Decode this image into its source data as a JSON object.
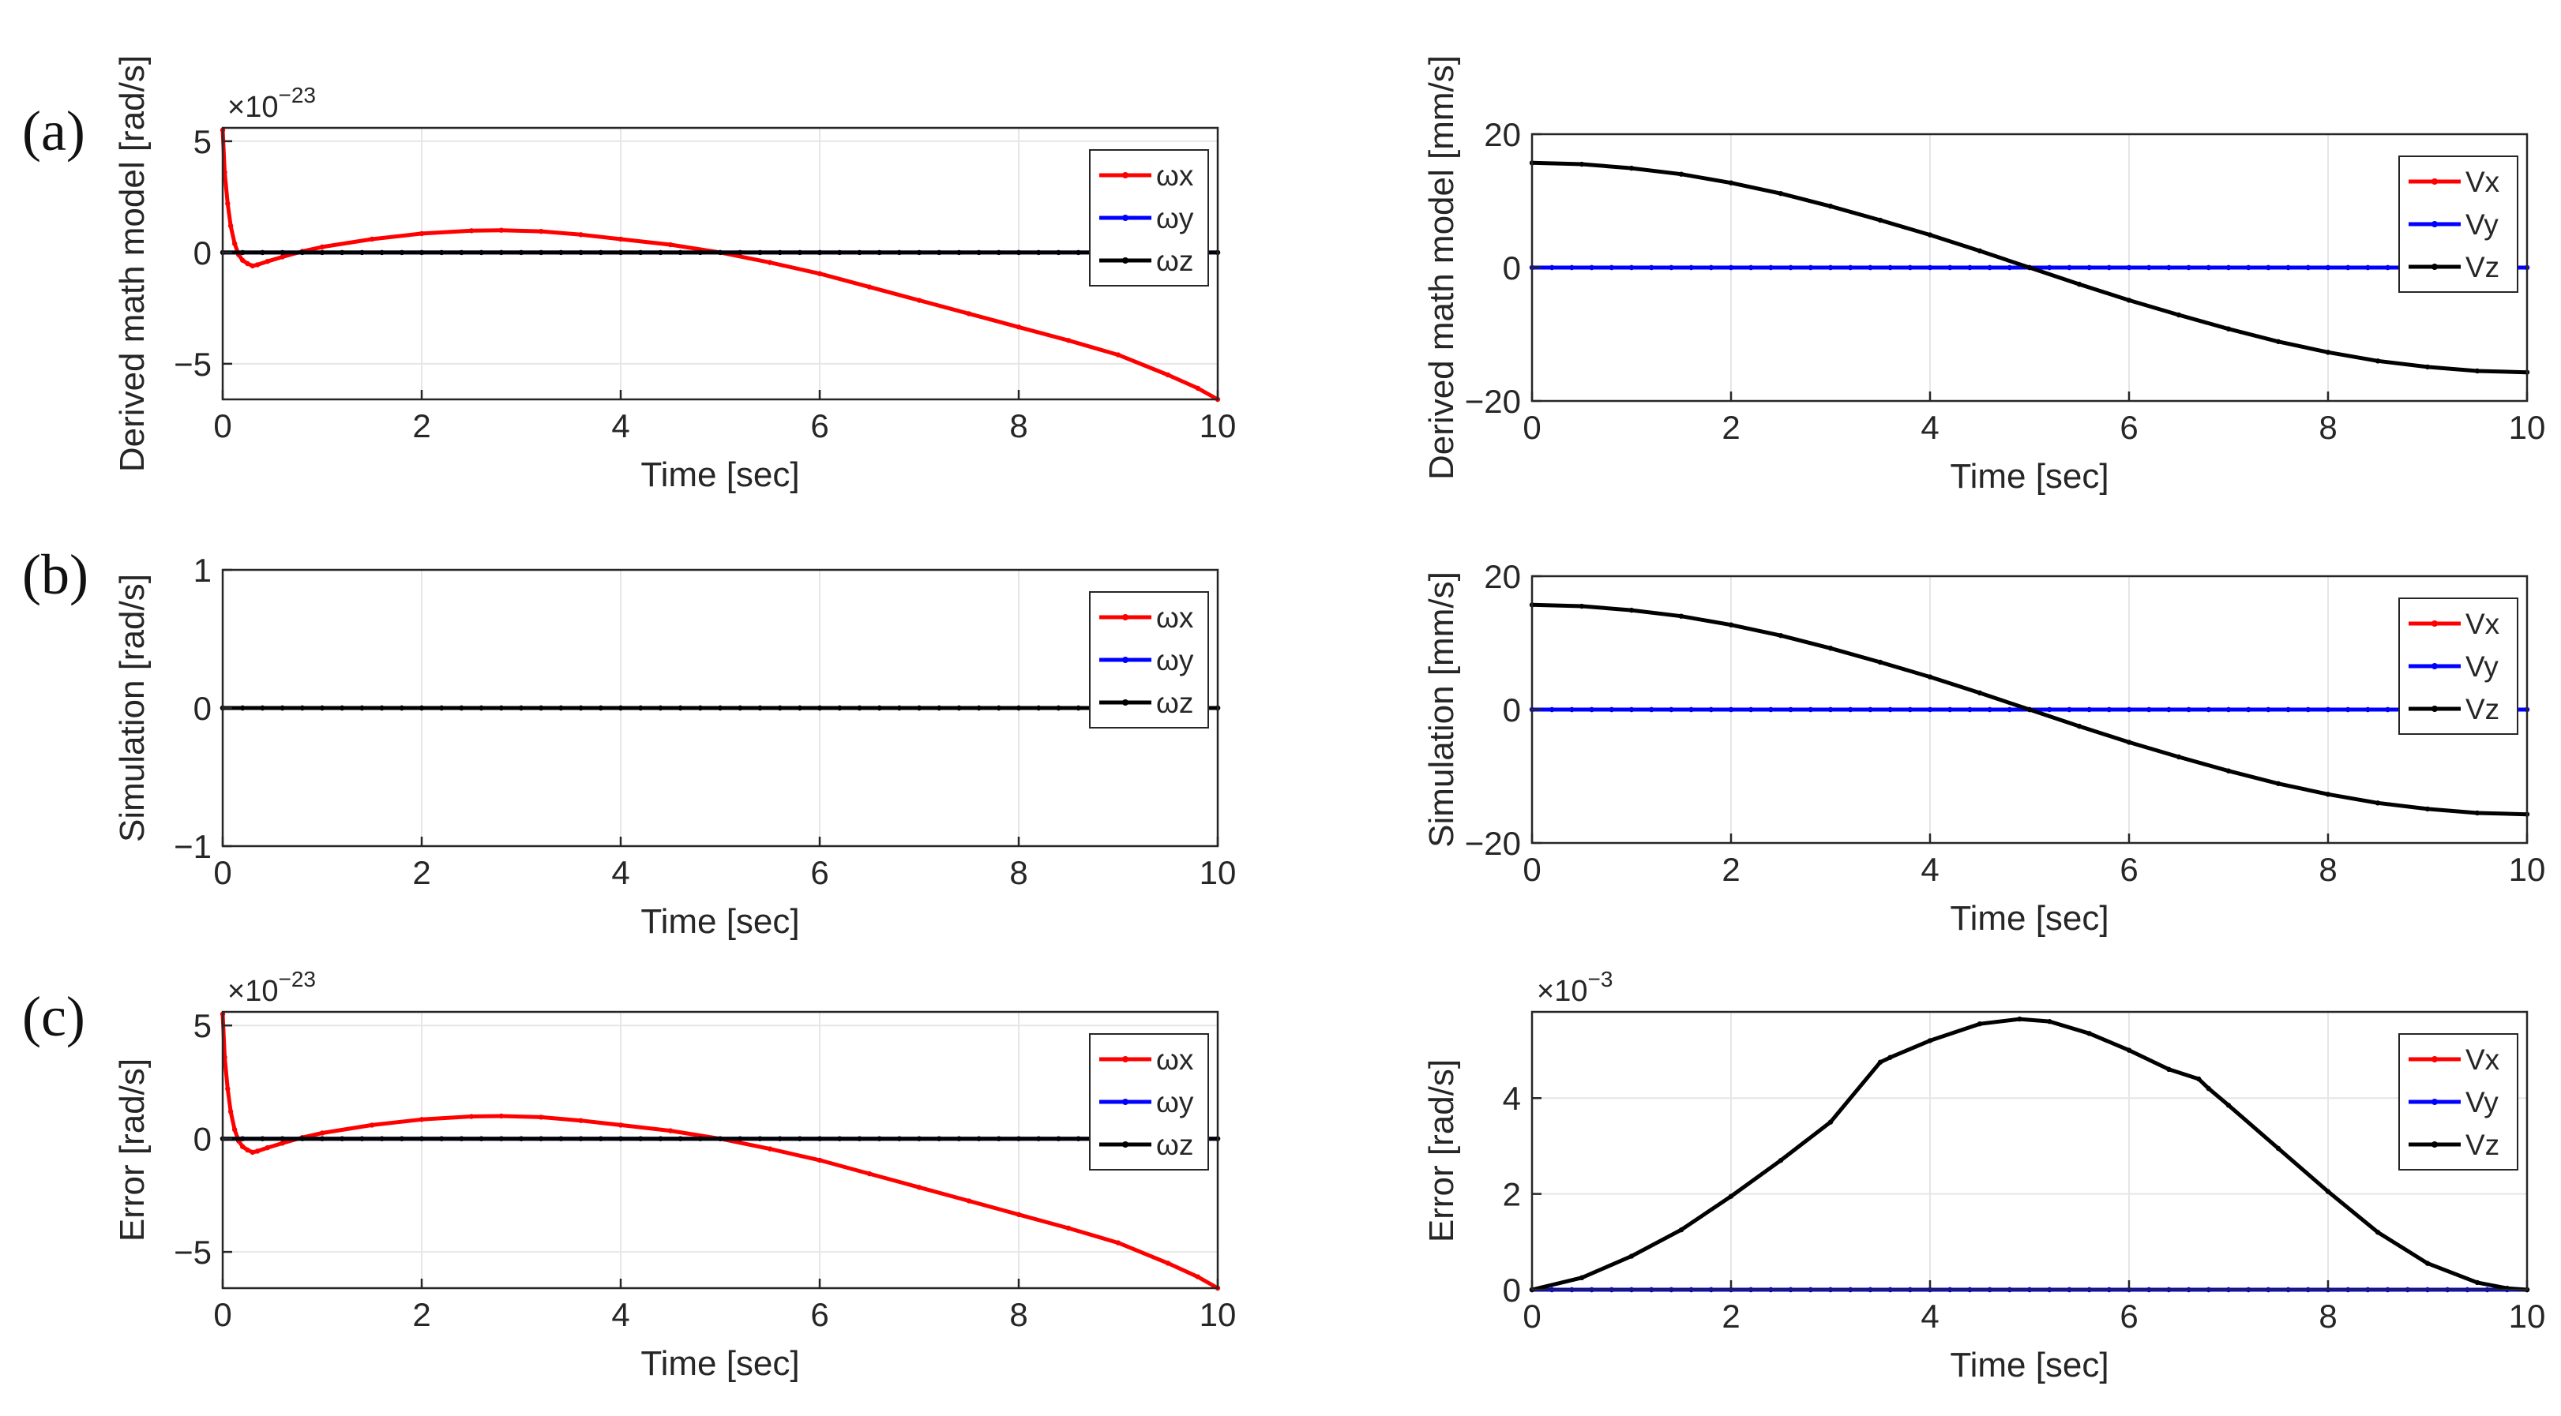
{
  "panel_labels": [
    "(a)",
    "(b)",
    "(c)"
  ],
  "colors": {
    "x": "#ff0000",
    "y": "#0000ff",
    "z": "#000000",
    "grid": "#e6e6e6",
    "axis": "#262626"
  },
  "chart_data": [
    {
      "id": "a-left",
      "type": "line",
      "panel": "(a)",
      "xlabel": "Time [sec]",
      "ylabel": "Derived math model [rad/s]",
      "xlim": [
        0,
        10
      ],
      "ylim": [
        -6.6,
        5.6
      ],
      "xticks": [
        0,
        2,
        4,
        6,
        8,
        10
      ],
      "yticks": [
        -5,
        0,
        5
      ],
      "multiplier": {
        "base": "×10",
        "exp": "-23"
      },
      "series": [
        {
          "name": "ωx",
          "color": "x",
          "x": [
            0,
            0.02,
            0.05,
            0.08,
            0.12,
            0.16,
            0.2,
            0.25,
            0.3,
            0.35,
            0.45,
            0.6,
            0.8,
            1,
            1.5,
            2,
            2.5,
            2.8,
            3.2,
            3.6,
            4,
            4.5,
            5,
            5.5,
            6,
            6.5,
            7,
            7.5,
            8,
            8.5,
            9,
            9.5,
            9.8,
            10
          ],
          "y": [
            5.5,
            3.6,
            2.2,
            1.2,
            0.4,
            -0.1,
            -0.35,
            -0.5,
            -0.6,
            -0.55,
            -0.4,
            -0.2,
            0.05,
            0.25,
            0.6,
            0.85,
            0.98,
            1.0,
            0.95,
            0.8,
            0.6,
            0.35,
            0.0,
            -0.45,
            -0.95,
            -1.55,
            -2.15,
            -2.75,
            -3.35,
            -3.95,
            -4.6,
            -5.5,
            -6.1,
            -6.6
          ]
        },
        {
          "name": "ωy",
          "color": "y",
          "x": [
            0,
            10
          ],
          "y": [
            0,
            0
          ]
        },
        {
          "name": "ωz",
          "color": "z",
          "x": [
            0,
            10
          ],
          "y": [
            0,
            0
          ]
        }
      ],
      "legend": [
        "ωx",
        "ωy",
        "ωz"
      ]
    },
    {
      "id": "a-right",
      "type": "line",
      "panel": "(a)",
      "xlabel": "Time [sec]",
      "ylabel": "Derived math model [mm/s]",
      "xlim": [
        0,
        10
      ],
      "ylim": [
        -20,
        20
      ],
      "xticks": [
        0,
        2,
        4,
        6,
        8,
        10
      ],
      "yticks": [
        -20,
        0,
        20
      ],
      "series": [
        {
          "name": "Vx",
          "color": "x",
          "x": [
            0,
            10
          ],
          "y": [
            0,
            0
          ]
        },
        {
          "name": "Vy",
          "color": "y",
          "x": [
            0,
            10
          ],
          "y": [
            0,
            0
          ]
        },
        {
          "name": "Vz",
          "color": "z",
          "x": [
            0,
            0.5,
            1,
            1.5,
            2,
            2.5,
            3,
            3.5,
            4,
            4.5,
            5,
            5.5,
            6,
            6.5,
            7,
            7.5,
            8,
            8.5,
            9,
            9.5,
            10
          ],
          "y": [
            15.7,
            15.5,
            14.9,
            14.0,
            12.7,
            11.1,
            9.2,
            7.1,
            4.9,
            2.5,
            0.0,
            -2.5,
            -4.9,
            -7.1,
            -9.2,
            -11.1,
            -12.7,
            -14.0,
            -14.9,
            -15.5,
            -15.7
          ]
        }
      ],
      "legend": [
        "Vx",
        "Vy",
        "Vz"
      ]
    },
    {
      "id": "b-left",
      "type": "line",
      "panel": "(b)",
      "xlabel": "Time [sec]",
      "ylabel": "Simulation [rad/s]",
      "xlim": [
        0,
        10
      ],
      "ylim": [
        -1,
        1
      ],
      "xticks": [
        0,
        2,
        4,
        6,
        8,
        10
      ],
      "yticks": [
        -1,
        0,
        1
      ],
      "series": [
        {
          "name": "ωx",
          "color": "x",
          "x": [
            0,
            10
          ],
          "y": [
            0,
            0
          ]
        },
        {
          "name": "ωy",
          "color": "y",
          "x": [
            0,
            10
          ],
          "y": [
            0,
            0
          ]
        },
        {
          "name": "ωz",
          "color": "z",
          "x": [
            0,
            10
          ],
          "y": [
            0,
            0
          ]
        }
      ],
      "legend": [
        "ωx",
        "ωy",
        "ωz"
      ]
    },
    {
      "id": "b-right",
      "type": "line",
      "panel": "(b)",
      "xlabel": "Time [sec]",
      "ylabel": "Simulation [mm/s]",
      "xlim": [
        0,
        10
      ],
      "ylim": [
        -20,
        20
      ],
      "xticks": [
        0,
        2,
        4,
        6,
        8,
        10
      ],
      "yticks": [
        -20,
        0,
        20
      ],
      "series": [
        {
          "name": "Vx",
          "color": "x",
          "x": [
            0,
            10
          ],
          "y": [
            0,
            0
          ]
        },
        {
          "name": "Vy",
          "color": "y",
          "x": [
            0,
            10
          ],
          "y": [
            0,
            0
          ]
        },
        {
          "name": "Vz",
          "color": "z",
          "x": [
            0,
            0.5,
            1,
            1.5,
            2,
            2.5,
            3,
            3.5,
            4,
            4.5,
            5,
            5.5,
            6,
            6.5,
            7,
            7.5,
            8,
            8.5,
            9,
            9.5,
            10
          ],
          "y": [
            15.7,
            15.5,
            14.9,
            14.0,
            12.7,
            11.1,
            9.2,
            7.1,
            4.9,
            2.5,
            0.0,
            -2.5,
            -4.9,
            -7.1,
            -9.2,
            -11.1,
            -12.7,
            -14.0,
            -14.9,
            -15.5,
            -15.7
          ]
        }
      ],
      "legend": [
        "Vx",
        "Vy",
        "Vz"
      ]
    },
    {
      "id": "c-left",
      "type": "line",
      "panel": "(c)",
      "xlabel": "Time [sec]",
      "ylabel": "Error [rad/s]",
      "xlim": [
        0,
        10
      ],
      "ylim": [
        -6.6,
        5.6
      ],
      "xticks": [
        0,
        2,
        4,
        6,
        8,
        10
      ],
      "yticks": [
        -5,
        0,
        5
      ],
      "multiplier": {
        "base": "×10",
        "exp": "-23"
      },
      "series": [
        {
          "name": "ωx",
          "color": "x",
          "x": [
            0,
            0.02,
            0.05,
            0.08,
            0.12,
            0.16,
            0.2,
            0.25,
            0.3,
            0.35,
            0.45,
            0.6,
            0.8,
            1,
            1.5,
            2,
            2.5,
            2.8,
            3.2,
            3.6,
            4,
            4.5,
            5,
            5.5,
            6,
            6.5,
            7,
            7.5,
            8,
            8.5,
            9,
            9.5,
            9.8,
            10
          ],
          "y": [
            5.5,
            3.6,
            2.2,
            1.2,
            0.4,
            -0.1,
            -0.35,
            -0.5,
            -0.6,
            -0.55,
            -0.4,
            -0.2,
            0.05,
            0.25,
            0.6,
            0.85,
            0.98,
            1.0,
            0.95,
            0.8,
            0.6,
            0.35,
            0.0,
            -0.45,
            -0.95,
            -1.55,
            -2.15,
            -2.75,
            -3.35,
            -3.95,
            -4.6,
            -5.5,
            -6.1,
            -6.6
          ]
        },
        {
          "name": "ωy",
          "color": "y",
          "x": [
            0,
            10
          ],
          "y": [
            0,
            0
          ]
        },
        {
          "name": "ωz",
          "color": "z",
          "x": [
            0,
            10
          ],
          "y": [
            0,
            0
          ]
        }
      ],
      "legend": [
        "ωx",
        "ωy",
        "ωz"
      ]
    },
    {
      "id": "c-right",
      "type": "line",
      "panel": "(c)",
      "xlabel": "Time [sec]",
      "ylabel": "Error [rad/s]",
      "xlim": [
        0,
        10
      ],
      "ylim": [
        0,
        5.8
      ],
      "xticks": [
        0,
        2,
        4,
        6,
        8,
        10
      ],
      "yticks": [
        0,
        2,
        4
      ],
      "multiplier": {
        "base": "×10",
        "exp": "-3"
      },
      "series": [
        {
          "name": "Vx",
          "color": "x",
          "x": [
            0,
            10
          ],
          "y": [
            0,
            0
          ]
        },
        {
          "name": "Vy",
          "color": "y",
          "x": [
            0,
            10
          ],
          "y": [
            0,
            0
          ]
        },
        {
          "name": "Vz",
          "color": "z",
          "x": [
            0,
            0.5,
            1,
            1.5,
            2,
            2.5,
            3,
            3.5,
            3.6,
            4,
            4.5,
            4.9,
            5.2,
            5.6,
            6,
            6.4,
            6.7,
            6.8,
            7,
            7.5,
            8,
            8.5,
            9,
            9.5,
            9.8,
            10
          ],
          "y": [
            0.0,
            0.25,
            0.7,
            1.25,
            1.95,
            2.7,
            3.5,
            4.75,
            4.85,
            5.2,
            5.55,
            5.65,
            5.6,
            5.35,
            5.0,
            4.6,
            4.4,
            4.2,
            3.85,
            2.95,
            2.05,
            1.2,
            0.55,
            0.15,
            0.03,
            0.0
          ]
        }
      ],
      "legend": [
        "Vx",
        "Vy",
        "Vz"
      ]
    }
  ]
}
